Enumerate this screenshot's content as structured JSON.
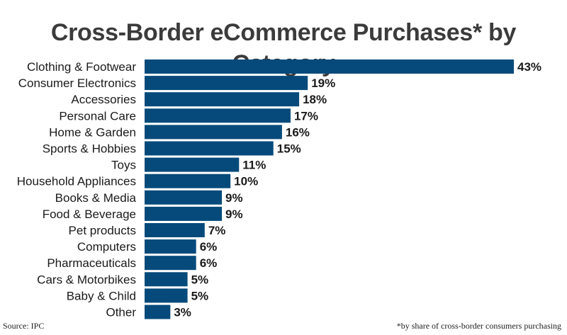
{
  "chart_data": {
    "type": "bar",
    "orientation": "horizontal",
    "title": "Cross-Border eCommerce Purchases* by Category",
    "categories": [
      "Clothing & Footwear",
      "Consumer Electronics",
      "Accessories",
      "Personal Care",
      "Home & Garden",
      "Sports & Hobbies",
      "Toys",
      "Household Appliances",
      "Books & Media",
      "Food & Beverage",
      "Pet products",
      "Computers",
      "Pharmaceuticals",
      "Cars & Motorbikes",
      "Baby & Child",
      "Other"
    ],
    "values": [
      43,
      19,
      18,
      17,
      16,
      15,
      11,
      10,
      9,
      9,
      7,
      6,
      6,
      5,
      5,
      3
    ],
    "value_labels": [
      "43%",
      "19%",
      "18%",
      "17%",
      "16%",
      "15%",
      "11%",
      "10%",
      "9%",
      "9%",
      "7%",
      "6%",
      "6%",
      "5%",
      "5%",
      "3%"
    ],
    "unit": "%",
    "bar_color": "#054a7a",
    "grid": false,
    "legend": "none"
  },
  "source": "Source: IPC",
  "footnote": "*by share of cross-border consumers purchasing"
}
